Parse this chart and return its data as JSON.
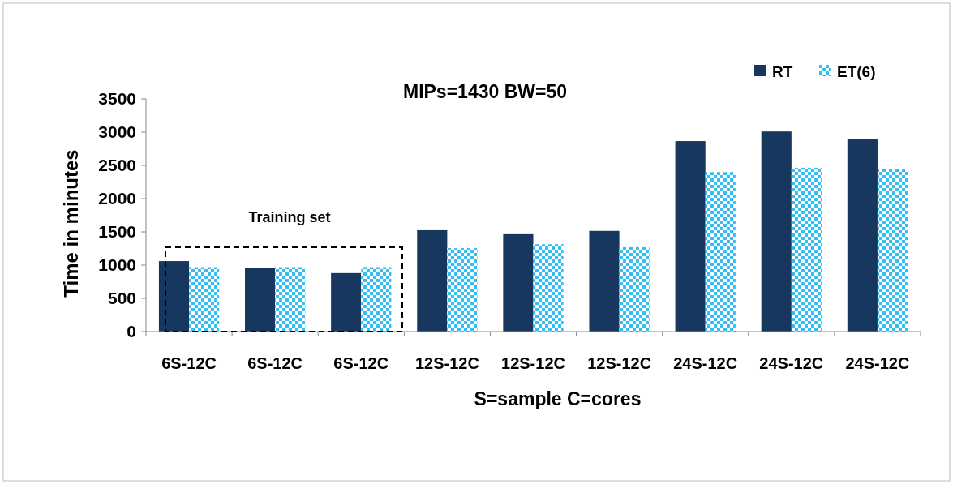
{
  "chart_data": {
    "type": "bar",
    "title": "MIPs=1430 BW=50",
    "xlabel": "S=sample C=cores",
    "ylabel": "Time in minutes",
    "categories": [
      "6S-12C",
      "6S-12C",
      "6S-12C",
      "12S-12C",
      "12S-12C",
      "12S-12C",
      "24S-12C",
      "24S-12C",
      "24S-12C"
    ],
    "series": [
      {
        "name": "RT",
        "color": "#17375e",
        "values": [
          1060,
          960,
          880,
          1525,
          1465,
          1515,
          2865,
          3010,
          2890
        ]
      },
      {
        "name": "ET(6)",
        "color": "#33bff2",
        "values": [
          970,
          970,
          970,
          1255,
          1315,
          1270,
          2400,
          2465,
          2450
        ]
      }
    ],
    "ylim": [
      0,
      3500
    ],
    "yticks": [
      0,
      500,
      1000,
      1500,
      2000,
      2500,
      3000,
      3500
    ],
    "grid": false,
    "legend": "top right",
    "annotations": [
      "Training set"
    ]
  }
}
